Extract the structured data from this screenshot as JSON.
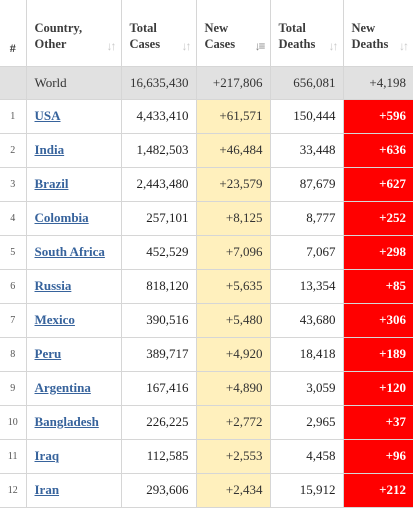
{
  "headers": {
    "num": "#",
    "country": [
      "Country,",
      "Other"
    ],
    "total_cases": [
      "Total",
      "Cases"
    ],
    "new_cases": [
      "New",
      "Cases"
    ],
    "total_deaths": [
      "Total",
      "Deaths"
    ],
    "new_deaths": [
      "New",
      "Deaths"
    ]
  },
  "icons": {
    "sort_default": "sort-arrows-icon",
    "sort_active": "sort-descending-icon"
  },
  "world": {
    "country": "World",
    "total_cases": "16,635,430",
    "new_cases": "+217,806",
    "total_deaths": "656,081",
    "new_deaths": "+4,198"
  },
  "rows": [
    {
      "num": "1",
      "country": "USA",
      "total_cases": "4,433,410",
      "new_cases": "+61,571",
      "total_deaths": "150,444",
      "new_deaths": "+596"
    },
    {
      "num": "2",
      "country": "India",
      "total_cases": "1,482,503",
      "new_cases": "+46,484",
      "total_deaths": "33,448",
      "new_deaths": "+636"
    },
    {
      "num": "3",
      "country": "Brazil",
      "total_cases": "2,443,480",
      "new_cases": "+23,579",
      "total_deaths": "87,679",
      "new_deaths": "+627"
    },
    {
      "num": "4",
      "country": "Colombia",
      "total_cases": "257,101",
      "new_cases": "+8,125",
      "total_deaths": "8,777",
      "new_deaths": "+252"
    },
    {
      "num": "5",
      "country": "South Africa",
      "total_cases": "452,529",
      "new_cases": "+7,096",
      "total_deaths": "7,067",
      "new_deaths": "+298"
    },
    {
      "num": "6",
      "country": "Russia",
      "total_cases": "818,120",
      "new_cases": "+5,635",
      "total_deaths": "13,354",
      "new_deaths": "+85"
    },
    {
      "num": "7",
      "country": "Mexico",
      "total_cases": "390,516",
      "new_cases": "+5,480",
      "total_deaths": "43,680",
      "new_deaths": "+306"
    },
    {
      "num": "8",
      "country": "Peru",
      "total_cases": "389,717",
      "new_cases": "+4,920",
      "total_deaths": "18,418",
      "new_deaths": "+189"
    },
    {
      "num": "9",
      "country": "Argentina",
      "total_cases": "167,416",
      "new_cases": "+4,890",
      "total_deaths": "3,059",
      "new_deaths": "+120"
    },
    {
      "num": "10",
      "country": "Bangladesh",
      "total_cases": "226,225",
      "new_cases": "+2,772",
      "total_deaths": "2,965",
      "new_deaths": "+37"
    },
    {
      "num": "11",
      "country": "Iraq",
      "total_cases": "112,585",
      "new_cases": "+2,553",
      "total_deaths": "4,458",
      "new_deaths": "+96"
    },
    {
      "num": "12",
      "country": "Iran",
      "total_cases": "293,606",
      "new_cases": "+2,434",
      "total_deaths": "15,912",
      "new_deaths": "+212"
    }
  ]
}
